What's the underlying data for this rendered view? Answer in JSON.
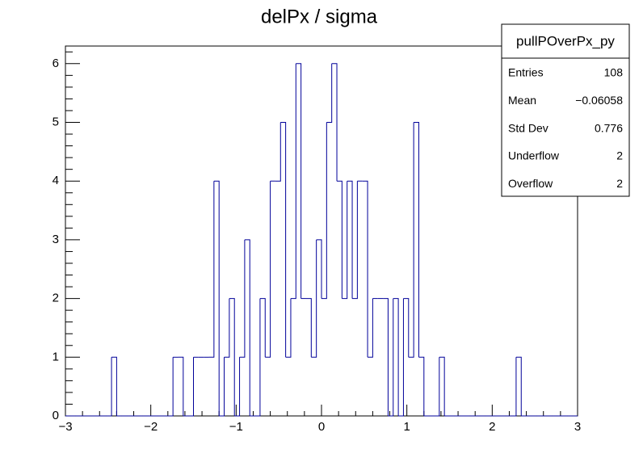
{
  "chart_data": {
    "type": "histogram",
    "title": "delPx / sigma",
    "color": "#000099",
    "bins": [
      -3,
      -2.94,
      -2.88,
      -2.82,
      -2.76,
      -2.7,
      -2.64,
      -2.58,
      -2.52,
      -2.46,
      -2.4,
      -2.34,
      -2.28,
      -2.22,
      -2.16,
      -2.1,
      -2.04,
      -1.98,
      -1.92,
      -1.86,
      -1.8,
      -1.74,
      -1.68,
      -1.62,
      -1.56,
      -1.5,
      -1.44,
      -1.38,
      -1.32,
      -1.26,
      -1.2,
      -1.14,
      -1.08,
      -1.02,
      -0.96,
      -0.9,
      -0.84,
      -0.78,
      -0.72,
      -0.66,
      -0.6,
      -0.54,
      -0.48,
      -0.42,
      -0.36,
      -0.3,
      -0.24,
      -0.18,
      -0.12,
      -0.06,
      0,
      0.06,
      0.12,
      0.18,
      0.24,
      0.3,
      0.36,
      0.42,
      0.48,
      0.54,
      0.6,
      0.66,
      0.72,
      0.78,
      0.84,
      0.9,
      0.96,
      1.02,
      1.08,
      1.14,
      1.2,
      1.26,
      1.32,
      1.38,
      1.44,
      1.5,
      1.56,
      1.62,
      1.68,
      1.74,
      1.8,
      1.86,
      1.92,
      1.98,
      2.04,
      2.1,
      2.16,
      2.22,
      2.28,
      2.34,
      2.4,
      2.46,
      2.52,
      2.58,
      2.64,
      2.7,
      2.76,
      2.82,
      2.88,
      2.94,
      3
    ],
    "values": [
      0,
      0,
      0,
      0,
      0,
      0,
      0,
      0,
      0,
      1,
      0,
      0,
      0,
      0,
      0,
      0,
      0,
      0,
      0,
      0,
      0,
      1,
      1,
      0,
      0,
      1,
      1,
      1,
      1,
      4,
      0,
      1,
      2,
      0,
      1,
      3,
      0,
      0,
      2,
      1,
      4,
      4,
      5,
      1,
      2,
      6,
      2,
      2,
      1,
      3,
      2,
      5,
      6,
      4,
      2,
      4,
      2,
      4,
      4,
      1,
      2,
      2,
      2,
      0,
      2,
      0,
      2,
      1,
      5,
      1,
      0,
      0,
      0,
      1,
      0,
      0,
      0,
      0,
      0,
      0,
      0,
      0,
      0,
      0,
      0,
      0,
      0,
      0,
      1,
      0,
      0,
      0,
      0,
      0,
      0,
      0,
      0,
      0,
      0,
      0
    ],
    "xlim": [
      -3,
      3
    ],
    "ylim": [
      0,
      6.3
    ],
    "xticks": [
      {
        "value": -3,
        "label": "−3"
      },
      {
        "value": -2,
        "label": "−2"
      },
      {
        "value": -1,
        "label": "−1"
      },
      0,
      1,
      2,
      3
    ],
    "yticks": [
      0,
      1,
      2,
      3,
      4,
      5,
      6
    ],
    "stats": {
      "title": "pullPOverPx_py",
      "rows": [
        [
          "Entries",
          "108"
        ],
        [
          "Mean",
          "−0.06058"
        ],
        [
          "Std Dev",
          "0.776"
        ],
        [
          "Underflow",
          "2"
        ],
        [
          "Overflow",
          "2"
        ]
      ]
    }
  }
}
